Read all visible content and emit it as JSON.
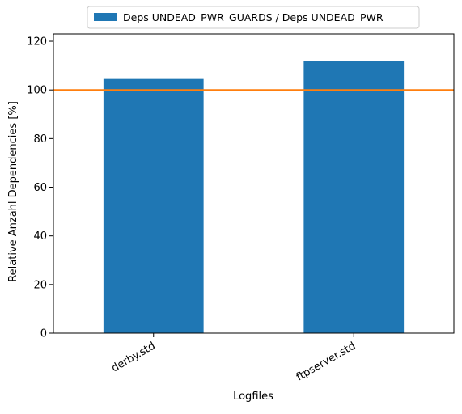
{
  "chart_data": {
    "type": "bar",
    "categories": [
      "derby.std",
      "ftpserver.std"
    ],
    "series": [
      {
        "name": "Deps UNDEAD_PWR_GUARDS / Deps UNDEAD_PWR",
        "values": [
          104.5,
          111.8
        ],
        "color": "#1f77b4"
      }
    ],
    "reference_line": {
      "y": 100,
      "color": "#ff7f0e"
    },
    "xlabel": "Logfiles",
    "ylabel": "Relative Anzahl Dependencies [%]",
    "ylim": [
      0,
      123
    ],
    "yticks": [
      0,
      20,
      40,
      60,
      80,
      100,
      120
    ],
    "grid": false,
    "legend_position": "top-center"
  }
}
